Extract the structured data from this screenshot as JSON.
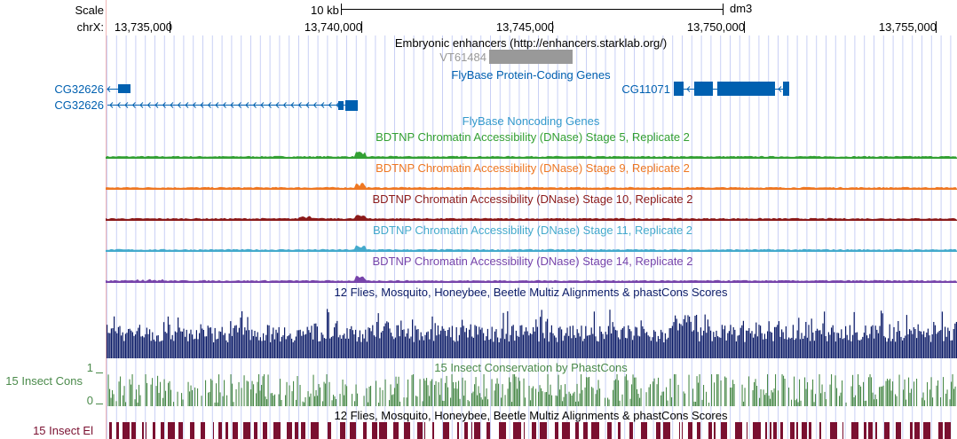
{
  "header": {
    "scale_label": "Scale",
    "scale_value": "10 kb",
    "assembly": "dm3",
    "chrom_label": "chrX:",
    "ticks": [
      "13,735,000",
      "13,740,000",
      "13,745,000",
      "13,750,000",
      "13,755,000"
    ]
  },
  "tracks": {
    "enhancers": {
      "title": "Embryonic enhancers (http://enhancers.starklab.org/)",
      "feature": "VT61484",
      "color": "#999999"
    },
    "flybase_coding": {
      "title": "FlyBase Protein-Coding Genes",
      "color": "#0060b0",
      "genes": [
        {
          "name": "CG32626",
          "strand": "-"
        },
        {
          "name": "CG32626",
          "strand": "-"
        },
        {
          "name": "CG11071",
          "strand": "-"
        }
      ]
    },
    "flybase_noncoding": {
      "title": "FlyBase Noncoding Genes",
      "color": "#3399cc"
    },
    "dnase": [
      {
        "title": "BDTNP Chromatin Accessibility (DNase) Stage 5, Replicate 2",
        "color": "#33a033"
      },
      {
        "title": "BDTNP Chromatin Accessibility (DNase) Stage 9, Replicate 2",
        "color": "#ee7722"
      },
      {
        "title": "BDTNP Chromatin Accessibility (DNase) Stage 10, Replicate 2",
        "color": "#8b1a1a"
      },
      {
        "title": "BDTNP Chromatin Accessibility (DNase) Stage 11, Replicate 2",
        "color": "#44aacc"
      },
      {
        "title": "BDTNP Chromatin Accessibility (DNase) Stage 14, Replicate 2",
        "color": "#7744aa"
      }
    ],
    "multiz": {
      "title": "12 Flies, Mosquito, Honeybee, Beetle Multiz Alignments & phastCons Scores",
      "color": "#0a1a66"
    },
    "phastcons": {
      "title": "15 Insect Conservation by PhastCons",
      "side_label": "15 Insect Cons",
      "axis_max": "1",
      "axis_min": "0",
      "color": "#4a8a4a"
    },
    "elements": {
      "title": "12 Flies, Mosquito, Honeybee, Beetle Multiz Alignments & phastCons Scores",
      "side_label": "15 Insect El",
      "color": "#7a1030"
    }
  }
}
